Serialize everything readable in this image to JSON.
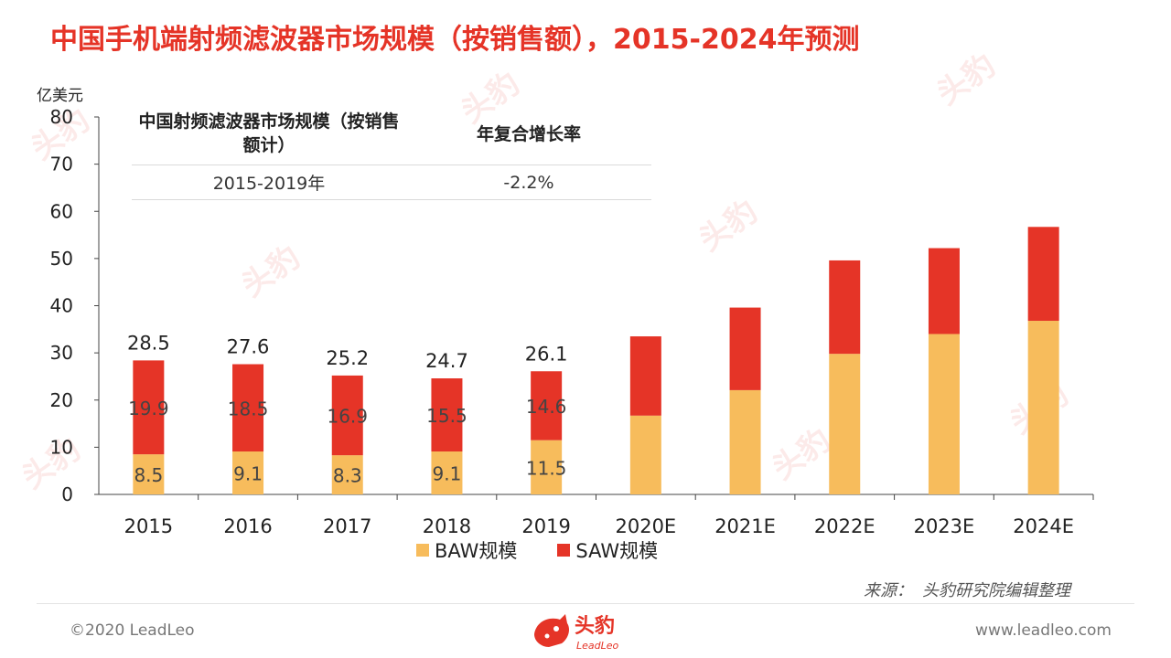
{
  "title": "中国手机端射频滤波器市场规模（按销售额），2015-2024年预测",
  "unit_label": "亿美元",
  "cagr_table": {
    "header_left": "中国射频滤波器市场规模（按销售额计）",
    "header_right": "年复合增长率",
    "row_period": "2015-2019年",
    "row_value": "-2.2%"
  },
  "chart_data": {
    "type": "bar",
    "stacked": true,
    "categories": [
      "2015",
      "2016",
      "2017",
      "2018",
      "2019",
      "2020E",
      "2021E",
      "2022E",
      "2023E",
      "2024E"
    ],
    "series": [
      {
        "name": "BAW规模",
        "color": "#f7bc5c",
        "values": [
          8.5,
          9.1,
          8.3,
          9.1,
          11.5,
          16.7,
          22.1,
          29.8,
          34.0,
          36.8
        ]
      },
      {
        "name": "SAW规模",
        "color": "#e53427",
        "values": [
          19.9,
          18.5,
          16.9,
          15.5,
          14.6,
          16.8,
          17.5,
          19.8,
          18.2,
          19.9
        ]
      }
    ],
    "totals": [
      "28.5",
      "27.6",
      "25.2",
      "24.7",
      "26.1",
      null,
      null,
      null,
      null,
      null
    ],
    "baw_labels": [
      "8.5",
      "9.1",
      "8.3",
      "9.1",
      "11.5",
      null,
      null,
      null,
      null,
      null
    ],
    "saw_labels": [
      "19.9",
      "18.5",
      "16.9",
      "15.5",
      "14.6",
      null,
      null,
      null,
      null,
      null
    ],
    "ylim": [
      0,
      80
    ],
    "yticks": [
      0,
      10,
      20,
      30,
      40,
      50,
      60,
      70,
      80
    ],
    "ylabel": "亿美元",
    "legend_position": "bottom"
  },
  "source": {
    "label": "来源：",
    "text": "头豹研究院编辑整理"
  },
  "footer": {
    "copyright": "©2020 LeadLeo",
    "website": "www.leadleo.com",
    "logo_text": "头豹",
    "logo_sub": "LeadLeo"
  },
  "colors": {
    "accent": "#e53427",
    "baw": "#f7bc5c",
    "saw": "#e53427"
  }
}
